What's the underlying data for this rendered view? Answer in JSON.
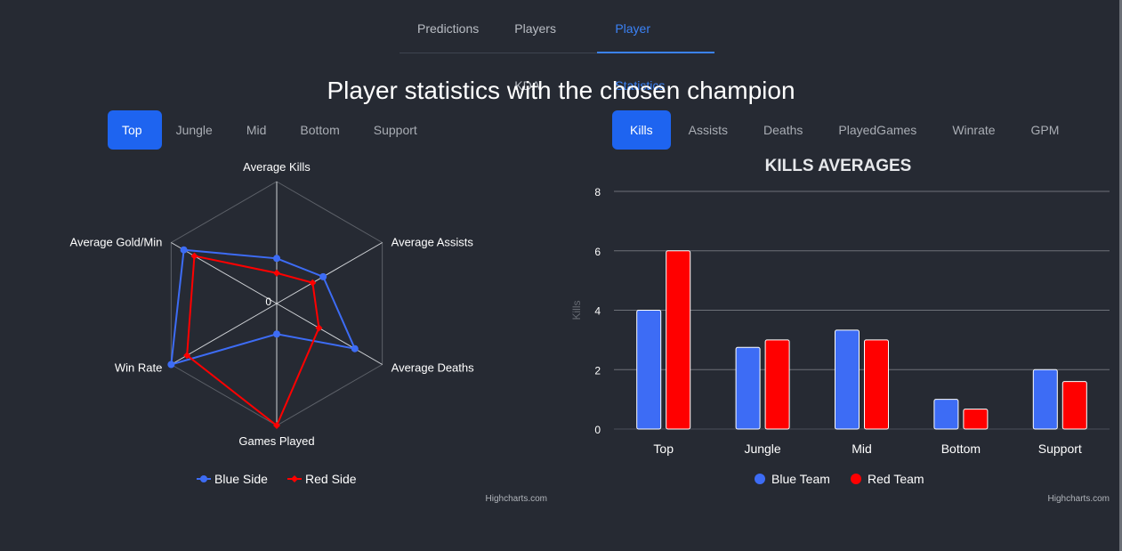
{
  "nav": {
    "tabs": [
      {
        "label": "Predictions"
      },
      {
        "label": "Players KDA"
      },
      {
        "label": "Player Statistics"
      }
    ],
    "active_index": 2
  },
  "page_title": "Player statistics with the chosen champion",
  "role_tabs": {
    "items": [
      "Top",
      "Jungle",
      "Mid",
      "Bottom",
      "Support"
    ],
    "active_index": 0
  },
  "metric_tabs": {
    "items": [
      "Kills",
      "Assists",
      "Deaths",
      "PlayedGames",
      "Winrate",
      "GPM"
    ],
    "active_index": 0
  },
  "colors": {
    "blue": "#3d6cf5",
    "red": "#ff0000",
    "accent": "#1e64f0"
  },
  "credits": "Highcharts.com",
  "chart_data": [
    {
      "type": "radar",
      "categories": [
        "Average Kills",
        "Average Assists",
        "Average Deaths",
        "Games Played",
        "Win Rate",
        "Average Gold/Min"
      ],
      "center_label": "0",
      "series": [
        {
          "name": "Blue Side",
          "values": [
            0.37,
            0.44,
            0.74,
            0.25,
            1.0,
            0.88
          ]
        },
        {
          "name": "Red Side",
          "values": [
            0.25,
            0.34,
            0.4,
            1.0,
            0.85,
            0.78
          ]
        }
      ],
      "legend": "bottom"
    },
    {
      "type": "bar",
      "title": "KILLS AVERAGES",
      "ylabel": "Kills",
      "ylim": [
        0,
        8
      ],
      "yticks": [
        "0",
        "2",
        "4",
        "6",
        "8"
      ],
      "categories": [
        "Top",
        "Jungle",
        "Mid",
        "Bottom",
        "Support"
      ],
      "series": [
        {
          "name": "Blue Team",
          "values": [
            4,
            2.75,
            3.33,
            1,
            2
          ]
        },
        {
          "name": "Red Team",
          "values": [
            6,
            3,
            3,
            0.67,
            1.6
          ]
        }
      ],
      "legend": "bottom"
    }
  ]
}
